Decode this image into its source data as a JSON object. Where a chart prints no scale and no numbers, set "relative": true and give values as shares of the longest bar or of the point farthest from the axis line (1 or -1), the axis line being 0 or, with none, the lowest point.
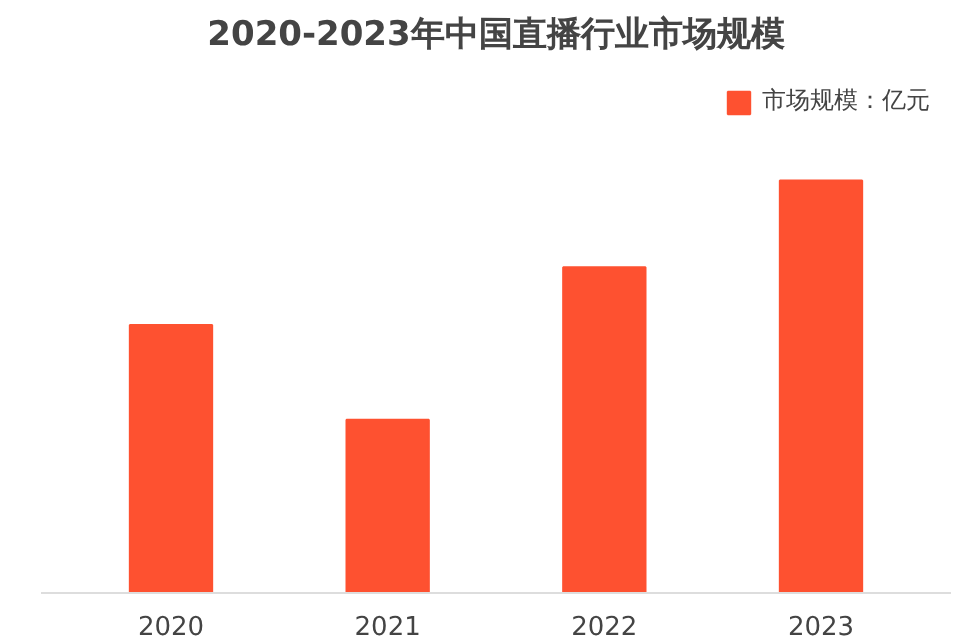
{
  "chart_data": {
    "type": "bar",
    "title": "2020-2023年中国直播行业市场规模",
    "categories": [
      "2020",
      "2021",
      "2022",
      "2023"
    ],
    "series": [
      {
        "name": "市场规模：亿元",
        "color": "#fe5130",
        "values": [
          0.65,
          0.42,
          0.79,
          1.0
        ]
      }
    ],
    "relative": true,
    "legend": "top right",
    "grid": false
  }
}
